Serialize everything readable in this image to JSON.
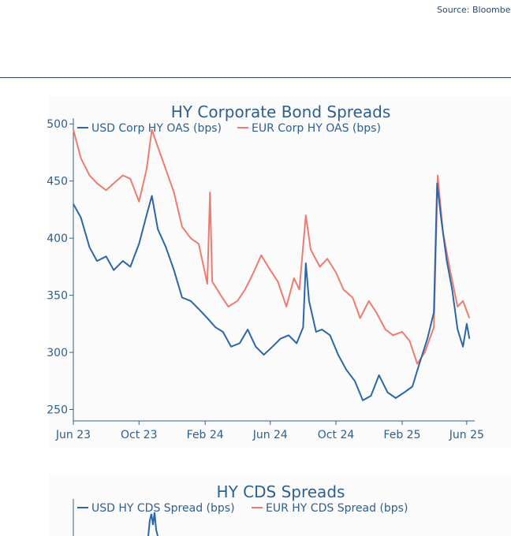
{
  "source_text": "Source: Bloomberg",
  "chart_data": [
    {
      "type": "line",
      "title": "HY Corporate Bond Spreads",
      "xlabel": "",
      "ylabel": "",
      "x_ticks": [
        "Jun 23",
        "Oct 23",
        "Feb 24",
        "Jun 24",
        "Oct 24",
        "Feb 25",
        "Jun 25"
      ],
      "x_tick_dates": [
        "2023-06-01",
        "2023-10-01",
        "2024-02-01",
        "2024-06-01",
        "2024-10-01",
        "2025-02-01",
        "2025-06-01"
      ],
      "y_ticks": [
        250,
        300,
        350,
        400,
        450,
        500
      ],
      "ylim": [
        240,
        505
      ],
      "xlim": [
        "2023-06-01",
        "2025-06-10"
      ],
      "legend_position": "top-left",
      "series": [
        {
          "name": "USD Corp HY OAS (bps)",
          "color": "#2a66a8",
          "points": [
            [
              "2023-06-01",
              430
            ],
            [
              "2023-06-15",
              418
            ],
            [
              "2023-07-01",
              392
            ],
            [
              "2023-07-15",
              380
            ],
            [
              "2023-08-01",
              384
            ],
            [
              "2023-08-15",
              372
            ],
            [
              "2023-09-01",
              380
            ],
            [
              "2023-09-15",
              375
            ],
            [
              "2023-10-01",
              395
            ],
            [
              "2023-10-15",
              420
            ],
            [
              "2023-10-25",
              437
            ],
            [
              "2023-11-05",
              408
            ],
            [
              "2023-11-20",
              392
            ],
            [
              "2023-12-05",
              372
            ],
            [
              "2023-12-20",
              348
            ],
            [
              "2024-01-05",
              345
            ],
            [
              "2024-01-20",
              338
            ],
            [
              "2024-02-05",
              330
            ],
            [
              "2024-02-20",
              322
            ],
            [
              "2024-03-05",
              318
            ],
            [
              "2024-03-20",
              305
            ],
            [
              "2024-04-05",
              308
            ],
            [
              "2024-04-20",
              320
            ],
            [
              "2024-05-05",
              305
            ],
            [
              "2024-05-20",
              298
            ],
            [
              "2024-06-05",
              305
            ],
            [
              "2024-06-20",
              312
            ],
            [
              "2024-07-05",
              315
            ],
            [
              "2024-07-20",
              308
            ],
            [
              "2024-08-01",
              322
            ],
            [
              "2024-08-06",
              378
            ],
            [
              "2024-08-12",
              345
            ],
            [
              "2024-08-25",
              318
            ],
            [
              "2024-09-05",
              320
            ],
            [
              "2024-09-20",
              315
            ],
            [
              "2024-10-05",
              298
            ],
            [
              "2024-10-20",
              285
            ],
            [
              "2024-11-05",
              275
            ],
            [
              "2024-11-20",
              258
            ],
            [
              "2024-12-05",
              262
            ],
            [
              "2024-12-20",
              280
            ],
            [
              "2025-01-05",
              265
            ],
            [
              "2025-01-20",
              260
            ],
            [
              "2025-02-05",
              265
            ],
            [
              "2025-02-20",
              270
            ],
            [
              "2025-03-05",
              290
            ],
            [
              "2025-03-20",
              312
            ],
            [
              "2025-04-01",
              335
            ],
            [
              "2025-04-07",
              448
            ],
            [
              "2025-04-15",
              415
            ],
            [
              "2025-04-25",
              380
            ],
            [
              "2025-05-05",
              355
            ],
            [
              "2025-05-15",
              320
            ],
            [
              "2025-05-25",
              305
            ],
            [
              "2025-06-01",
              325
            ],
            [
              "2025-06-06",
              312
            ]
          ]
        },
        {
          "name": "EUR Corp HY OAS (bps)",
          "color": "#ee7b70",
          "points": [
            [
              "2023-06-01",
              495
            ],
            [
              "2023-06-15",
              470
            ],
            [
              "2023-07-01",
              455
            ],
            [
              "2023-07-15",
              448
            ],
            [
              "2023-08-01",
              442
            ],
            [
              "2023-08-15",
              448
            ],
            [
              "2023-09-01",
              455
            ],
            [
              "2023-09-15",
              452
            ],
            [
              "2023-10-01",
              432
            ],
            [
              "2023-10-15",
              460
            ],
            [
              "2023-10-25",
              495
            ],
            [
              "2023-11-05",
              480
            ],
            [
              "2023-11-20",
              460
            ],
            [
              "2023-12-05",
              440
            ],
            [
              "2023-12-20",
              410
            ],
            [
              "2024-01-05",
              400
            ],
            [
              "2024-01-20",
              395
            ],
            [
              "2024-02-05",
              360
            ],
            [
              "2024-02-10",
              440
            ],
            [
              "2024-02-14",
              362
            ],
            [
              "2024-03-01",
              350
            ],
            [
              "2024-03-15",
              340
            ],
            [
              "2024-04-01",
              345
            ],
            [
              "2024-04-15",
              355
            ],
            [
              "2024-05-01",
              370
            ],
            [
              "2024-05-15",
              385
            ],
            [
              "2024-06-01",
              372
            ],
            [
              "2024-06-15",
              362
            ],
            [
              "2024-07-01",
              340
            ],
            [
              "2024-07-15",
              365
            ],
            [
              "2024-07-25",
              355
            ],
            [
              "2024-08-06",
              420
            ],
            [
              "2024-08-15",
              390
            ],
            [
              "2024-09-01",
              375
            ],
            [
              "2024-09-15",
              382
            ],
            [
              "2024-10-01",
              370
            ],
            [
              "2024-10-15",
              355
            ],
            [
              "2024-11-01",
              348
            ],
            [
              "2024-11-15",
              330
            ],
            [
              "2024-12-01",
              345
            ],
            [
              "2024-12-15",
              335
            ],
            [
              "2025-01-01",
              320
            ],
            [
              "2025-01-15",
              315
            ],
            [
              "2025-02-01",
              318
            ],
            [
              "2025-02-15",
              310
            ],
            [
              "2025-03-01",
              290
            ],
            [
              "2025-03-15",
              300
            ],
            [
              "2025-04-01",
              322
            ],
            [
              "2025-04-08",
              455
            ],
            [
              "2025-04-18",
              405
            ],
            [
              "2025-05-01",
              372
            ],
            [
              "2025-05-15",
              340
            ],
            [
              "2025-05-25",
              345
            ],
            [
              "2025-06-06",
              330
            ]
          ]
        }
      ]
    },
    {
      "type": "line",
      "title": "HY CDS Spreads",
      "xlabel": "",
      "ylabel": "",
      "legend_position": "top-left",
      "series": [
        {
          "name": "USD HY CDS Spread (bps)",
          "color": "#2a66a8"
        },
        {
          "name": "EUR HY CDS Spread (bps)",
          "color": "#ee7b70"
        }
      ]
    }
  ]
}
